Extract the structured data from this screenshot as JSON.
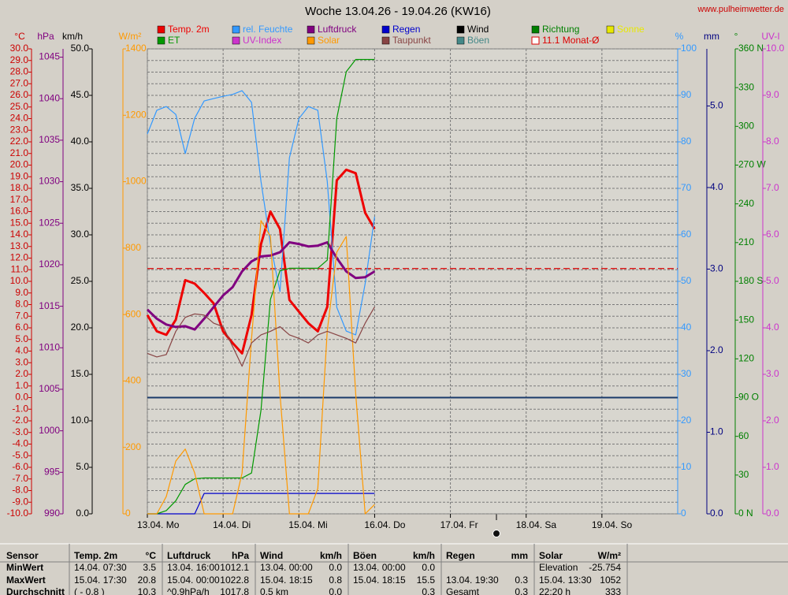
{
  "site": "www.pulheimwetter.de",
  "chart_data": {
    "type": "line",
    "title": "Woche 13.04.26 - 19.04.26 (KW16)",
    "grid": true,
    "xlim": [
      0,
      7
    ],
    "xticks": [
      {
        "value": 0,
        "label": "13.04. Mo"
      },
      {
        "value": 1,
        "label": "14.04. Di"
      },
      {
        "value": 2,
        "label": "15.04. Mi"
      },
      {
        "value": 3,
        "label": "16.04. Do"
      },
      {
        "value": 4,
        "label": "17.04. Fr"
      },
      {
        "value": 5,
        "label": "18.04. Sa"
      },
      {
        "value": 6,
        "label": "19.04. So"
      }
    ],
    "x": [
      0,
      0.125,
      0.25,
      0.375,
      0.5,
      0.625,
      0.75,
      0.875,
      1,
      1.125,
      1.25,
      1.375,
      1.5,
      1.625,
      1.75,
      1.875,
      2,
      2.125,
      2.25,
      2.375,
      2.5,
      2.625,
      2.75,
      2.875,
      3
    ],
    "axes": [
      {
        "id": "temp",
        "title": "°C",
        "color": "#cc0000",
        "ylim": [
          -10,
          30
        ],
        "yticks": [
          {
            "value": -10,
            "label": "-10.0"
          },
          {
            "value": -9,
            "label": "-9.0"
          },
          {
            "value": -8,
            "label": "-8.0"
          },
          {
            "value": -7,
            "label": "-7.0"
          },
          {
            "value": -6,
            "label": "-6.0"
          },
          {
            "value": -5,
            "label": "-5.0"
          },
          {
            "value": -4,
            "label": "-4.0"
          },
          {
            "value": -3,
            "label": "-3.0"
          },
          {
            "value": -2,
            "label": "-2.0"
          },
          {
            "value": -1,
            "label": "-1.0"
          },
          {
            "value": 0,
            "label": "0.0"
          },
          {
            "value": 1,
            "label": "1.0"
          },
          {
            "value": 2,
            "label": "2.0"
          },
          {
            "value": 3,
            "label": "3.0"
          },
          {
            "value": 4,
            "label": "4.0"
          },
          {
            "value": 5,
            "label": "5.0"
          },
          {
            "value": 6,
            "label": "6.0"
          },
          {
            "value": 7,
            "label": "7.0"
          },
          {
            "value": 8,
            "label": "8.0"
          },
          {
            "value": 9,
            "label": "9.0"
          },
          {
            "value": 10,
            "label": "10.0"
          },
          {
            "value": 11,
            "label": "11.0"
          },
          {
            "value": 12,
            "label": "12.0"
          },
          {
            "value": 13,
            "label": "13.0"
          },
          {
            "value": 14,
            "label": "14.0"
          },
          {
            "value": 15,
            "label": "15.0"
          },
          {
            "value": 16,
            "label": "16.0"
          },
          {
            "value": 17,
            "label": "17.0"
          },
          {
            "value": 18,
            "label": "18.0"
          },
          {
            "value": 19,
            "label": "19.0"
          },
          {
            "value": 20,
            "label": "20.0"
          },
          {
            "value": 21,
            "label": "21.0"
          },
          {
            "value": 22,
            "label": "22.0"
          },
          {
            "value": 23,
            "label": "23.0"
          },
          {
            "value": 24,
            "label": "24.0"
          },
          {
            "value": 25,
            "label": "25.0"
          },
          {
            "value": 26,
            "label": "26.0"
          },
          {
            "value": 27,
            "label": "27.0"
          },
          {
            "value": 28,
            "label": "28.0"
          },
          {
            "value": 29,
            "label": "29.0"
          },
          {
            "value": 30,
            "label": "30.0"
          }
        ]
      },
      {
        "id": "hpa",
        "title": "hPa",
        "color": "#800080",
        "ylim": [
          990,
          1046
        ],
        "yticks": [
          990,
          995,
          1000,
          1005,
          1010,
          1015,
          1020,
          1025,
          1030,
          1035,
          1040,
          1045
        ]
      },
      {
        "id": "kmh",
        "title": "km/h",
        "color": "#000000",
        "ylim": [
          0,
          50
        ],
        "yticks": [
          {
            "value": 0,
            "label": "0.0"
          },
          {
            "value": 5,
            "label": "5.0"
          },
          {
            "value": 10,
            "label": "10.0"
          },
          {
            "value": 15,
            "label": "15.0"
          },
          {
            "value": 20,
            "label": "20.0"
          },
          {
            "value": 25,
            "label": "25.0"
          },
          {
            "value": 30,
            "label": "30.0"
          },
          {
            "value": 35,
            "label": "35.0"
          },
          {
            "value": 40,
            "label": "40.0"
          },
          {
            "value": 45,
            "label": "45.0"
          },
          {
            "value": 50,
            "label": "50.0"
          }
        ]
      },
      {
        "id": "wm2",
        "title": "W/m²",
        "color": "#ff9900",
        "ylim": [
          0,
          1400
        ],
        "yticks": [
          0,
          200,
          400,
          600,
          800,
          1000,
          1200,
          1400
        ]
      },
      {
        "id": "pct",
        "title": "%",
        "color": "#3399ff",
        "ylim": [
          0,
          100
        ],
        "yticks": [
          0,
          10,
          20,
          30,
          40,
          50,
          60,
          70,
          80,
          90,
          100
        ]
      },
      {
        "id": "mm",
        "title": "mm",
        "color": "#000080",
        "ylim": [
          0,
          5.7
        ],
        "yticks": [
          {
            "value": 0,
            "label": "0.0"
          },
          {
            "value": 1,
            "label": "1.0"
          },
          {
            "value": 2,
            "label": "2.0"
          },
          {
            "value": 3,
            "label": "3.0"
          },
          {
            "value": 4,
            "label": "4.0"
          },
          {
            "value": 5,
            "label": "5.0"
          }
        ]
      },
      {
        "id": "dir",
        "title": "°",
        "color": "#008000",
        "ylim": [
          0,
          360
        ],
        "yticks": [
          {
            "value": 0,
            "label": "0 N"
          },
          30,
          60,
          {
            "value": 90,
            "label": "90 O"
          },
          120,
          150,
          {
            "value": 180,
            "label": "180 S"
          },
          210,
          240,
          {
            "value": 270,
            "label": "270 W"
          },
          300,
          330,
          {
            "value": 360,
            "label": "360 N"
          }
        ]
      },
      {
        "id": "uv",
        "title": "UV-I",
        "color": "#cc33cc",
        "ylim": [
          0,
          10
        ],
        "yticks": [
          {
            "value": 0,
            "label": "0.0"
          },
          {
            "value": 1,
            "label": "1.0"
          },
          {
            "value": 2,
            "label": "2.0"
          },
          {
            "value": 3,
            "label": "3.0"
          },
          {
            "value": 4,
            "label": "4.0"
          },
          {
            "value": 5,
            "label": "5.0"
          },
          {
            "value": 6,
            "label": "6.0"
          },
          {
            "value": 7,
            "label": "7.0"
          },
          {
            "value": 8,
            "label": "8.0"
          },
          {
            "value": 9,
            "label": "9.0"
          },
          {
            "value": 10,
            "label": "10.0"
          }
        ]
      }
    ],
    "series": [
      {
        "name": "Temp. 2m",
        "color": "#ee0000",
        "axis": "temp",
        "values": [
          7.1,
          5.7,
          5.4,
          6.7,
          10.1,
          9.8,
          9.0,
          8.1,
          5.7,
          4.7,
          3.8,
          7.1,
          13.2,
          16.0,
          14.5,
          8.4,
          7.4,
          6.4,
          5.7,
          7.8,
          18.7,
          19.6,
          19.3,
          15.9,
          14.5
        ]
      },
      {
        "name": "rel. Feuchte",
        "color": "#3399ff",
        "axis": "pct",
        "values": [
          81.7,
          86.8,
          87.6,
          85.9,
          77.5,
          85.1,
          88.8,
          89.3,
          89.8,
          90.2,
          91,
          88.5,
          71.5,
          58,
          47.8,
          76.6,
          85,
          87.6,
          86.8,
          71.5,
          44.4,
          39.3,
          38.5,
          49.5,
          63.9
        ]
      },
      {
        "name": "Luftdruck",
        "color": "#800080",
        "axis": "hpa",
        "values": [
          1014.6,
          1013.5,
          1012.8,
          1012.5,
          1012.6,
          1012.2,
          1013.5,
          1014.9,
          1016.3,
          1017.3,
          1019.2,
          1020.4,
          1021,
          1021.1,
          1021.5,
          1022.7,
          1022.5,
          1022.2,
          1022.3,
          1022.7,
          1020.8,
          1019.2,
          1018.4,
          1018.5,
          1019.2
        ]
      },
      {
        "name": "Regen",
        "color": "#0000cc",
        "axis": "mm",
        "values": [
          0,
          0,
          0,
          0,
          0,
          0,
          0.25,
          0.25,
          0.25,
          0.25,
          0.25,
          0.25,
          0.25,
          0.25,
          0.25,
          0.25,
          0.25,
          0.25,
          0.25,
          0.25,
          0.25,
          0.25,
          0.25,
          0.25,
          0.25
        ]
      },
      {
        "name": "ET",
        "color": "#009900",
        "axis": "mm",
        "values": [
          0,
          0,
          0.04,
          0.16,
          0.36,
          0.43,
          0.44,
          0.44,
          0.44,
          0.44,
          0.44,
          0.5,
          1.27,
          2.63,
          2.98,
          3.01,
          3.01,
          3.01,
          3.01,
          3.11,
          4.85,
          5.42,
          5.57,
          5.57,
          5.57
        ]
      },
      {
        "name": "Solar",
        "color": "#ff9900",
        "axis": "wm2",
        "values": [
          0,
          0,
          52,
          159,
          195,
          123,
          0,
          0,
          0,
          0,
          123,
          527,
          883,
          835,
          361,
          0,
          0,
          0,
          76,
          551,
          788,
          835,
          361,
          0,
          28
        ]
      },
      {
        "name": "Taupunkt",
        "color": "#884444",
        "axis": "temp",
        "values": [
          3.8,
          3.5,
          3.7,
          5.7,
          6.9,
          7.2,
          7.1,
          6.4,
          6.1,
          4.4,
          2.7,
          4.7,
          5.4,
          5.7,
          6.1,
          5.4,
          5.1,
          4.7,
          5.4,
          5.7,
          5.4,
          5.1,
          4.7,
          6.4,
          7.8
        ]
      }
    ],
    "legend_extra": [
      {
        "name": "Wind",
        "color": "#000000"
      },
      {
        "name": "Richtung",
        "color": "#008000"
      },
      {
        "name": "Sonne",
        "color": "#e8e800"
      },
      {
        "name": "UV-Index",
        "color": "#cc33cc"
      },
      {
        "name": "Böen",
        "color": "#448888"
      }
    ],
    "reference": {
      "value": 11.1,
      "label": "11.1 Monat-Ø",
      "color": "#dd0000"
    }
  },
  "table": {
    "header": [
      "Sensor",
      "Temp. 2m",
      "°C",
      "Luftdruck",
      "hPa",
      "Wind",
      "km/h",
      "Böen",
      "km/h",
      "Regen",
      "mm",
      "Solar",
      "W/m²"
    ],
    "rows": [
      [
        "MinWert",
        "14.04. 07:30",
        "3.5",
        "13.04. 16:00",
        "1012.1",
        "13.04. 00:00",
        "0.0",
        "13.04. 00:00",
        "0.0",
        null,
        null,
        "Elevation",
        "-25.754"
      ],
      [
        "MaxWert",
        "15.04. 17:30",
        "20.8",
        "15.04. 00:00",
        "1022.8",
        "15.04. 18:15",
        "0.8",
        "15.04. 18:15",
        "15.5",
        "13.04. 19:30",
        "0.3",
        "15.04. 13:30",
        "1052"
      ],
      [
        "Durchschnitt",
        "( - 0.8 )",
        "10.3",
        "^0.9hPa/h",
        "1017.8",
        "0.5 km",
        "0.0",
        null,
        "0.3",
        "Gesamt",
        "0.3",
        "22:20 h",
        "333"
      ]
    ]
  }
}
